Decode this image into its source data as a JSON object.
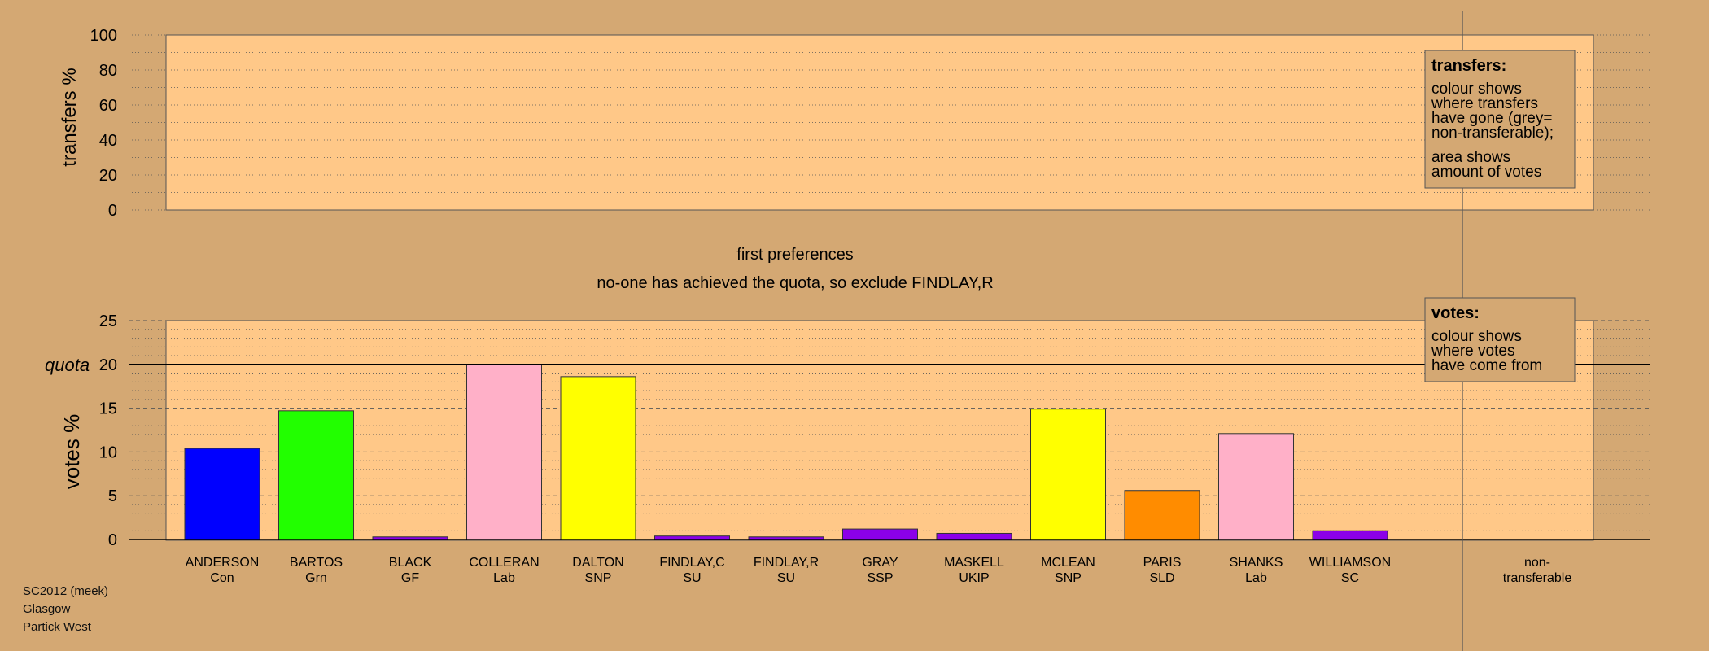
{
  "chart_data": {
    "type": "bar",
    "top_panel": {
      "ylabel": "transfers %",
      "yticks": [
        0,
        20,
        40,
        60,
        80,
        100
      ],
      "ylim": [
        0,
        100
      ],
      "legend": {
        "title": "transfers:",
        "lines1": [
          "colour shows",
          "where transfers",
          "have gone (grey=",
          "non-transferable);"
        ],
        "lines2": [
          "area shows",
          "amount of votes"
        ]
      }
    },
    "mid_title": "first preferences",
    "mid_subtitle": "no-one has achieved the quota, so exclude FINDLAY,R",
    "bottom_panel": {
      "ylabel": "votes %",
      "quota_label": "quota",
      "quota": 20,
      "yticks": [
        0,
        5,
        10,
        15,
        20,
        25
      ],
      "ylim": [
        0,
        25
      ],
      "legend": {
        "title": "votes:",
        "lines": [
          "colour shows",
          "where votes",
          "have come from"
        ]
      }
    },
    "candidates": [
      {
        "name": "ANDERSON",
        "party": "Con",
        "value": 10.4,
        "color": "#0000ff"
      },
      {
        "name": "BARTOS",
        "party": "Grn",
        "value": 14.7,
        "color": "#22ff00"
      },
      {
        "name": "BLACK",
        "party": "GF",
        "value": 0.3,
        "color": "#8b00e8"
      },
      {
        "name": "COLLERAN",
        "party": "Lab",
        "value": 20.0,
        "color": "#ffb0c8"
      },
      {
        "name": "DALTON",
        "party": "SNP",
        "value": 18.6,
        "color": "#ffff00"
      },
      {
        "name": "FINDLAY,C",
        "party": "SU",
        "value": 0.4,
        "color": "#8b00e8"
      },
      {
        "name": "FINDLAY,R",
        "party": "SU",
        "value": 0.3,
        "color": "#8b00e8"
      },
      {
        "name": "GRAY",
        "party": "SSP",
        "value": 1.2,
        "color": "#8b00e8"
      },
      {
        "name": "MASKELL",
        "party": "UKIP",
        "value": 0.7,
        "color": "#8b00e8"
      },
      {
        "name": "MCLEAN",
        "party": "SNP",
        "value": 14.9,
        "color": "#ffff00"
      },
      {
        "name": "PARIS",
        "party": "SLD",
        "value": 5.6,
        "color": "#ff8c00"
      },
      {
        "name": "SHANKS",
        "party": "Lab",
        "value": 12.1,
        "color": "#ffb0c8"
      },
      {
        "name": "WILLIAMSON",
        "party": "SC",
        "value": 1.0,
        "color": "#8b00e8"
      }
    ],
    "nontransferable": {
      "line1": "non-",
      "line2": "transferable"
    }
  },
  "credits": [
    "SC2012 (meek)",
    "Glasgow",
    "Partick West"
  ]
}
